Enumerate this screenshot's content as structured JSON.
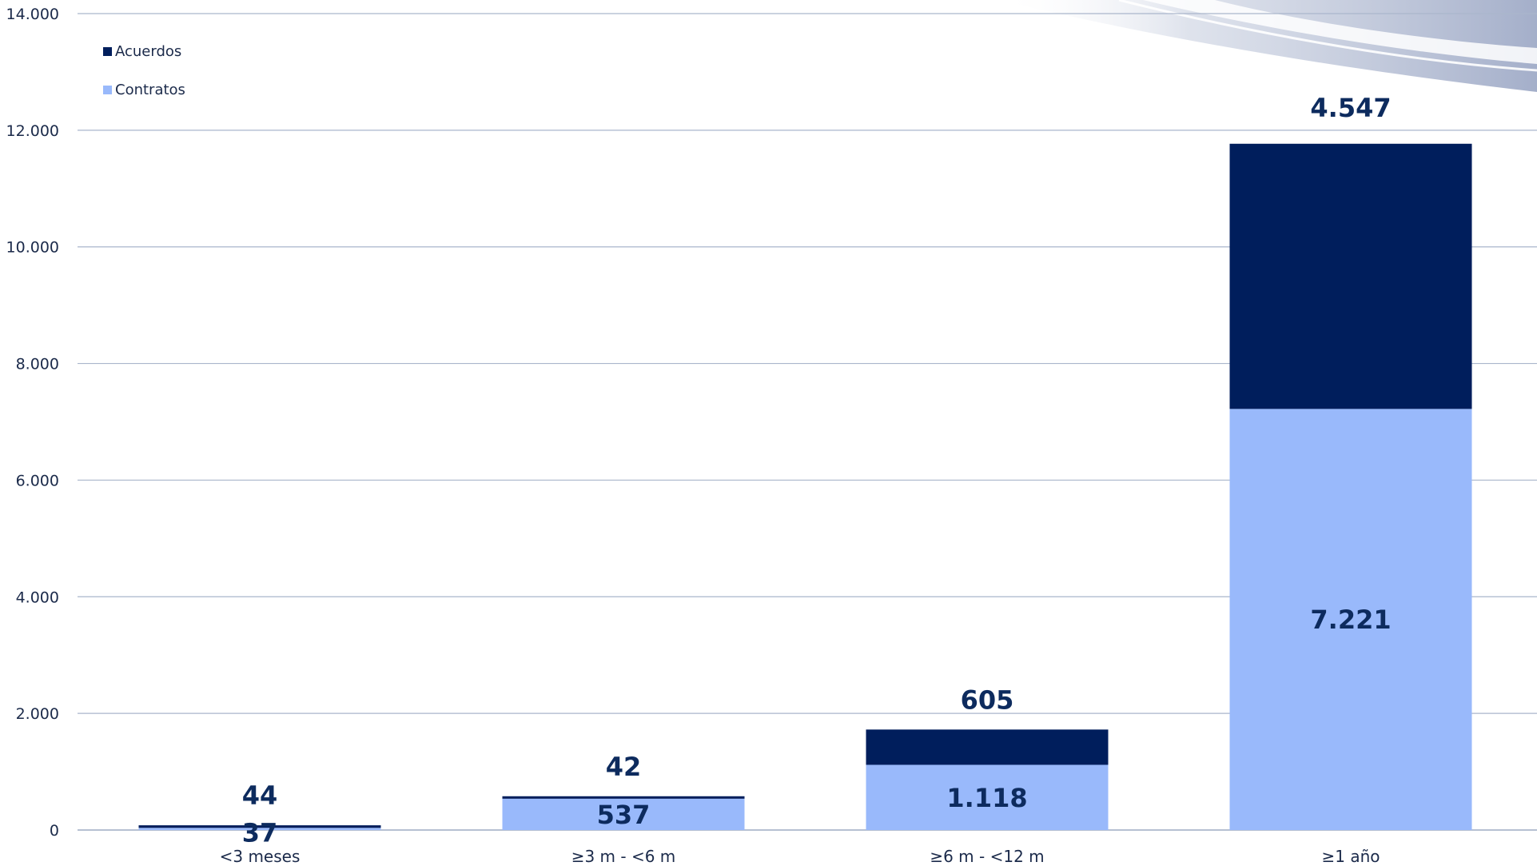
{
  "chart_data": {
    "type": "bar",
    "stacked": true,
    "categories": [
      "<3 meses",
      "≥3 m - <6 m",
      "≥6 m - <12 m",
      "≥1 año"
    ],
    "series": [
      {
        "name": "Contratos",
        "values": [
          37,
          537,
          1118,
          7221
        ],
        "labels": [
          "37",
          "537",
          "1.118",
          "7.221"
        ],
        "color": "#99b9fb"
      },
      {
        "name": "Acuerdos",
        "values": [
          44,
          42,
          605,
          4547
        ],
        "labels": [
          "44",
          "42",
          "605",
          "4.547"
        ],
        "color": "#001e5c"
      }
    ],
    "ylim": [
      0,
      14000
    ],
    "yticks": [
      "0",
      "2.000",
      "4.000",
      "6.000",
      "8.000",
      "10.000",
      "12.000",
      "14.000"
    ],
    "grid": true,
    "legend_position": "top-left",
    "legend": [
      {
        "name": "Acuerdos",
        "color": "#001e5c"
      },
      {
        "name": "Contratos",
        "color": "#99b9fb"
      }
    ]
  }
}
